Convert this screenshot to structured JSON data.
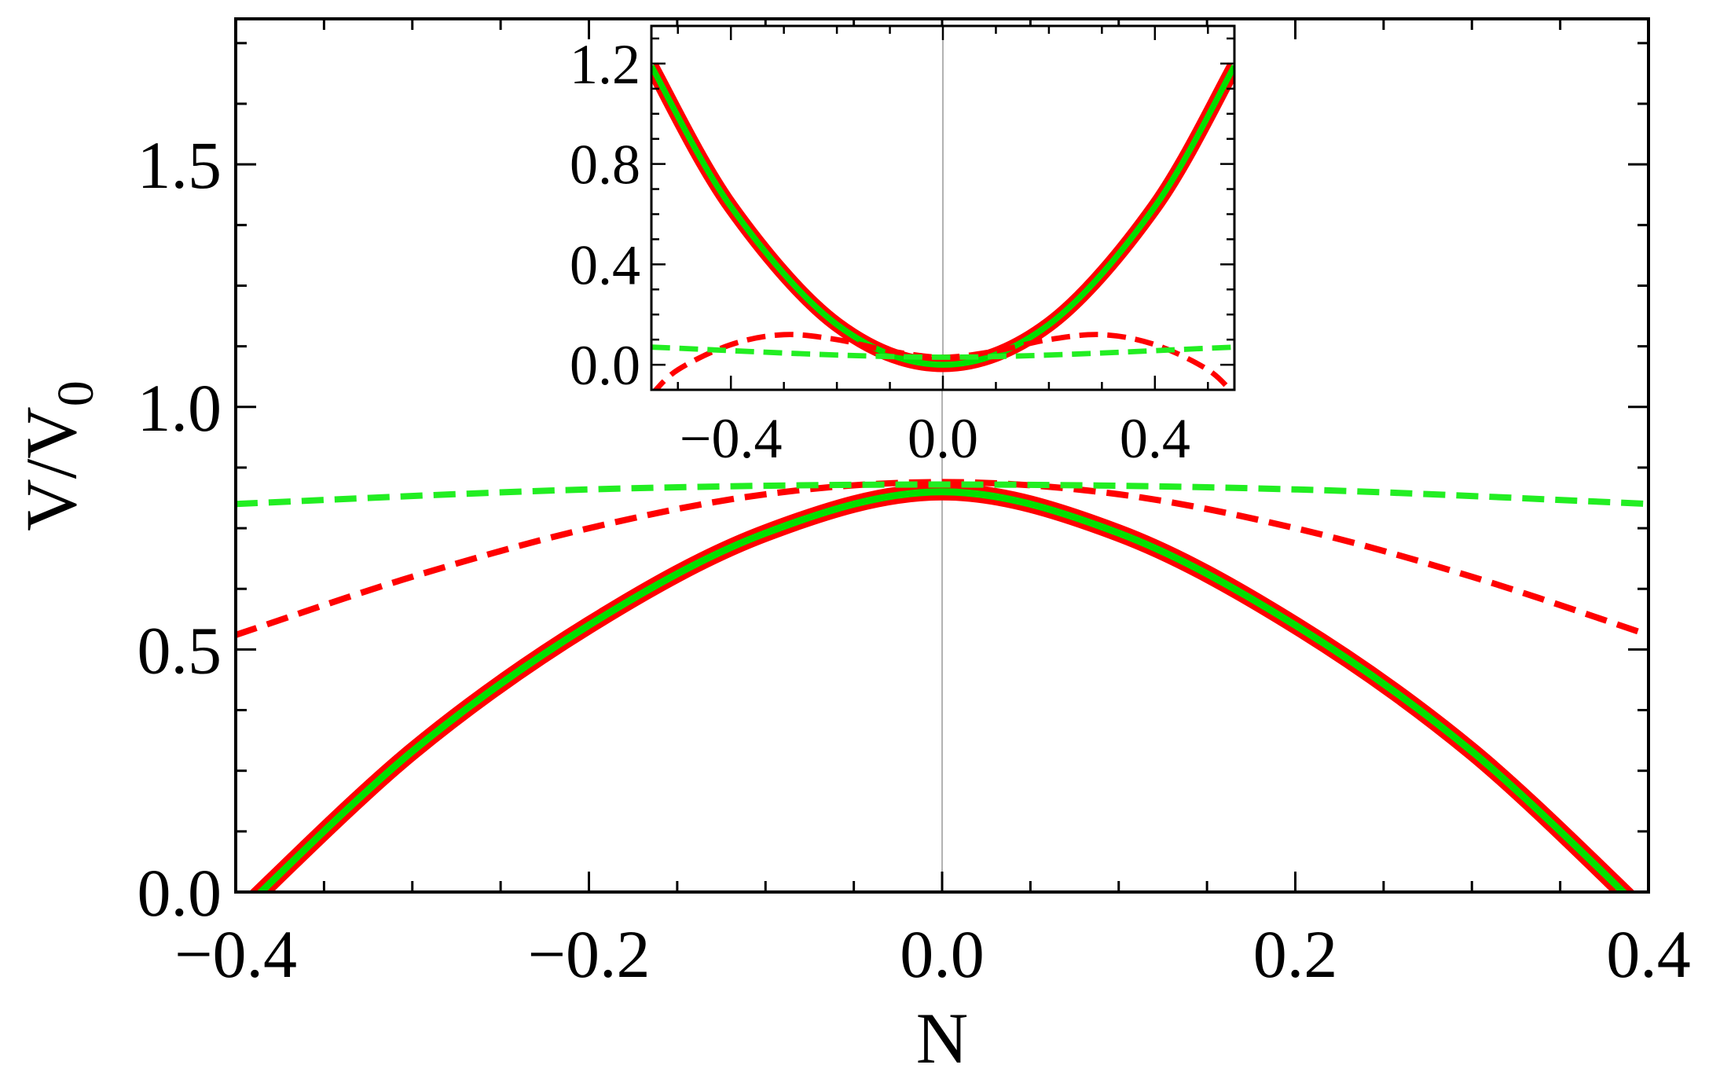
{
  "chart_data": [
    {
      "type": "line",
      "title": "",
      "xlabel": "N",
      "ylabel_main": "V/V",
      "ylabel_sub": "0",
      "xlim": [
        -0.4,
        0.4
      ],
      "ylim": [
        0,
        1.8
      ],
      "x_ticks": [
        -0.4,
        -0.2,
        0.0,
        0.2,
        0.4
      ],
      "x_tick_labels": [
        "−0.4",
        "−0.2",
        "0.0",
        "0.2",
        "0.4"
      ],
      "y_ticks": [
        0.0,
        0.5,
        1.0,
        1.5
      ],
      "y_tick_labels": [
        "0.0",
        "0.5",
        "1.0",
        "1.5"
      ],
      "grid": false,
      "series": [
        {
          "x": [
            -0.4,
            -0.3,
            -0.2,
            -0.1,
            0.0,
            0.1,
            0.2,
            0.3,
            0.4
          ],
          "y": [
            -0.05,
            0.29,
            0.55,
            0.74,
            0.825,
            0.74,
            0.55,
            0.29,
            -0.05
          ],
          "color": "#ff0000",
          "style": "solid-thick"
        },
        {
          "x": [
            -0.4,
            -0.3,
            -0.2,
            -0.1,
            0.0,
            0.1,
            0.2,
            0.3,
            0.4
          ],
          "y": [
            -0.05,
            0.29,
            0.55,
            0.74,
            0.825,
            0.74,
            0.55,
            0.29,
            -0.05
          ],
          "color": "#00e000",
          "style": "solid"
        },
        {
          "x": [
            -0.4,
            -0.3,
            -0.2,
            -0.1,
            0.0,
            0.1,
            0.2,
            0.3,
            0.4
          ],
          "y": [
            0.53,
            0.65,
            0.75,
            0.82,
            0.845,
            0.82,
            0.75,
            0.65,
            0.53
          ],
          "color": "#ff0000",
          "style": "dashed"
        },
        {
          "x": [
            -0.4,
            -0.2,
            0.0,
            0.2,
            0.4
          ],
          "y": [
            0.8,
            0.83,
            0.84,
            0.83,
            0.8
          ],
          "color": "#22ee22",
          "style": "dashed"
        }
      ]
    },
    {
      "type": "line",
      "title": "",
      "xlabel": "",
      "ylabel": "",
      "xlim": [
        -0.55,
        0.55
      ],
      "ylim": [
        -0.1,
        1.35
      ],
      "x_ticks": [
        -0.4,
        0.0,
        0.4
      ],
      "x_tick_labels": [
        "−0.4",
        "0.0",
        "0.4"
      ],
      "y_ticks": [
        0.0,
        0.4,
        0.8,
        1.2
      ],
      "y_tick_labels": [
        "0.0",
        "0.4",
        "0.8",
        "1.2"
      ],
      "grid": false,
      "series": [
        {
          "x": [
            -0.55,
            -0.4,
            -0.2,
            0.0,
            0.2,
            0.4,
            0.55
          ],
          "y": [
            1.19,
            0.63,
            0.16,
            0.0,
            0.16,
            0.63,
            1.19
          ],
          "color": "#ff0000",
          "style": "solid-thick"
        },
        {
          "x": [
            -0.55,
            -0.4,
            -0.2,
            0.0,
            0.2,
            0.4,
            0.55
          ],
          "y": [
            1.19,
            0.63,
            0.16,
            0.0,
            0.16,
            0.63,
            1.19
          ],
          "color": "#00e000",
          "style": "solid"
        },
        {
          "x": [
            -0.55,
            -0.5,
            -0.4,
            -0.3,
            -0.2,
            -0.1,
            0.0,
            0.1,
            0.2,
            0.3,
            0.4,
            0.5,
            0.55
          ],
          "y": [
            -0.12,
            -0.02,
            0.08,
            0.12,
            0.1,
            0.055,
            0.03,
            0.055,
            0.1,
            0.12,
            0.08,
            -0.02,
            -0.12
          ],
          "color": "#ff0000",
          "style": "dashed"
        },
        {
          "x": [
            -0.55,
            0.0,
            0.55
          ],
          "y": [
            0.07,
            0.03,
            0.07
          ],
          "color": "#22ee22",
          "style": "dashed"
        }
      ]
    }
  ]
}
